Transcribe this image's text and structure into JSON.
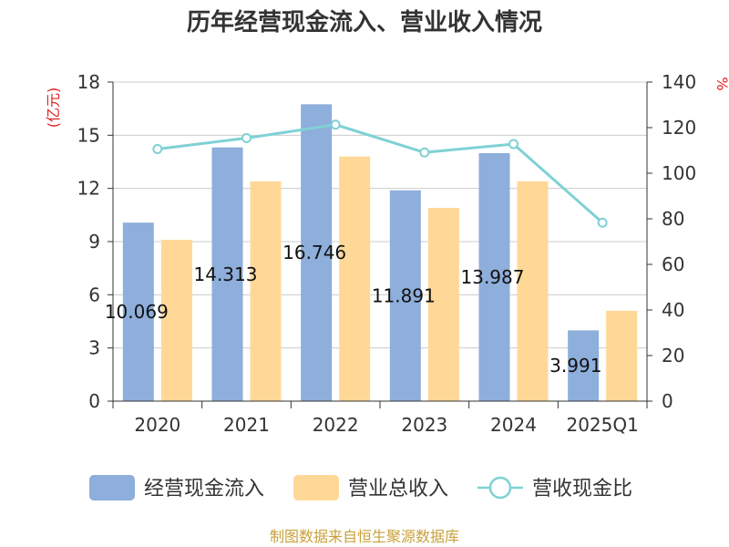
{
  "chart_data": {
    "type": "bar",
    "title": "历年经营现金流入、营业收入情况",
    "categories": [
      "2020",
      "2021",
      "2022",
      "2023",
      "2024",
      "2025Q1"
    ],
    "series": [
      {
        "name": "经营现金流入",
        "type": "bar",
        "axis": "left",
        "color": "#8eaedb",
        "values": [
          10.069,
          14.313,
          16.746,
          11.891,
          13.987,
          3.991
        ],
        "labels": [
          "10.069",
          "14.313",
          "16.746",
          "11.891",
          "13.987",
          "3.991"
        ]
      },
      {
        "name": "营业总收入",
        "type": "bar",
        "axis": "left",
        "color": "#ffd898",
        "values": [
          9.1,
          12.4,
          13.8,
          10.9,
          12.4,
          5.1
        ]
      },
      {
        "name": "营收现金比",
        "type": "line",
        "axis": "right",
        "color": "#7fd1d4",
        "values": [
          110.6,
          115.4,
          121.3,
          109.1,
          112.8,
          78.3
        ]
      }
    ],
    "y_left": {
      "label": "(亿元)",
      "ticks": [
        "0",
        "3",
        "6",
        "9",
        "12",
        "15",
        "18"
      ],
      "ylim": [
        0,
        18
      ]
    },
    "y_right": {
      "label": "%",
      "ticks": [
        "0",
        "20",
        "40",
        "60",
        "80",
        "100",
        "120",
        "140"
      ],
      "ylim": [
        0,
        140
      ]
    },
    "grid": true,
    "legend_position": "bottom"
  },
  "source": "制图数据来自恒生聚源数据库"
}
